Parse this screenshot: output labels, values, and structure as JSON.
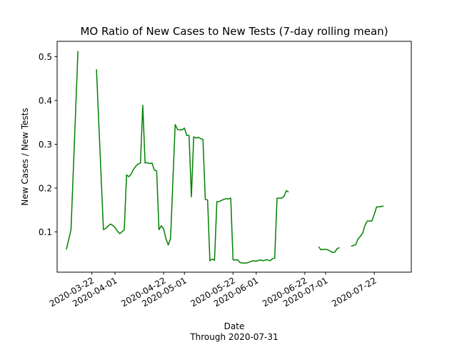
{
  "chart_data": {
    "type": "line",
    "title": "MO Ratio of New Cases to New Tests (7-day rolling mean)",
    "xlabel": "Date",
    "xlabel_sub": "Through 2020-07-31",
    "ylabel": "New Cases / New Tests",
    "xlim": [
      "2020-03-07",
      "2020-08-07"
    ],
    "ylim": [
      0.008,
      0.535
    ],
    "yticks": [
      0.1,
      0.2,
      0.3,
      0.4,
      0.5
    ],
    "ytick_labels": [
      "0.1",
      "0.2",
      "0.3",
      "0.4",
      "0.5"
    ],
    "xticks": [
      "2020-03-22",
      "2020-04-01",
      "2020-04-22",
      "2020-05-01",
      "2020-05-22",
      "2020-06-01",
      "2020-06-22",
      "2020-07-01",
      "2020-07-22"
    ],
    "grid": false,
    "line_color": "#008000",
    "series": [
      {
        "segments": [
          [
            [
              "2020-03-11",
              0.06
            ],
            [
              "2020-03-13",
              0.105
            ],
            [
              "2020-03-16",
              0.513
            ]
          ],
          [
            [
              "2020-03-24",
              0.471
            ],
            [
              "2020-03-27",
              0.105
            ],
            [
              "2020-03-28",
              0.108
            ],
            [
              "2020-03-29",
              0.113
            ],
            [
              "2020-03-30",
              0.118
            ],
            [
              "2020-03-31",
              0.115
            ],
            [
              "2020-04-01",
              0.11
            ],
            [
              "2020-04-02",
              0.102
            ],
            [
              "2020-04-03",
              0.096
            ],
            [
              "2020-04-04",
              0.1
            ],
            [
              "2020-04-05",
              0.105
            ],
            [
              "2020-04-06",
              0.23
            ],
            [
              "2020-04-07",
              0.226
            ],
            [
              "2020-04-08",
              0.232
            ],
            [
              "2020-04-09",
              0.243
            ],
            [
              "2020-04-10",
              0.25
            ],
            [
              "2020-04-11",
              0.255
            ],
            [
              "2020-04-12",
              0.257
            ],
            [
              "2020-04-13",
              0.389
            ],
            [
              "2020-04-14",
              0.257
            ],
            [
              "2020-04-15",
              0.258
            ],
            [
              "2020-04-16",
              0.256
            ],
            [
              "2020-04-17",
              0.257
            ],
            [
              "2020-04-18",
              0.241
            ],
            [
              "2020-04-19",
              0.239
            ],
            [
              "2020-04-20",
              0.105
            ],
            [
              "2020-04-21",
              0.114
            ],
            [
              "2020-04-22",
              0.107
            ],
            [
              "2020-04-23",
              0.085
            ],
            [
              "2020-04-24",
              0.07
            ],
            [
              "2020-04-25",
              0.085
            ],
            [
              "2020-04-27",
              0.345
            ],
            [
              "2020-04-28",
              0.334
            ],
            [
              "2020-04-29",
              0.333
            ],
            [
              "2020-04-30",
              0.333
            ],
            [
              "2020-05-01",
              0.337
            ],
            [
              "2020-05-02",
              0.32
            ],
            [
              "2020-05-03",
              0.32
            ],
            [
              "2020-05-04",
              0.18
            ],
            [
              "2020-05-05",
              0.317
            ],
            [
              "2020-05-06",
              0.314
            ],
            [
              "2020-05-07",
              0.316
            ],
            [
              "2020-05-08",
              0.313
            ],
            [
              "2020-05-09",
              0.311
            ],
            [
              "2020-05-10",
              0.174
            ],
            [
              "2020-05-11",
              0.173
            ],
            [
              "2020-05-12",
              0.034
            ],
            [
              "2020-05-13",
              0.038
            ],
            [
              "2020-05-14",
              0.035
            ],
            [
              "2020-05-15",
              0.169
            ],
            [
              "2020-05-16",
              0.169
            ],
            [
              "2020-05-17",
              0.172
            ],
            [
              "2020-05-18",
              0.174
            ],
            [
              "2020-05-19",
              0.176
            ],
            [
              "2020-05-20",
              0.175
            ],
            [
              "2020-05-21",
              0.177
            ],
            [
              "2020-05-22",
              0.036
            ],
            [
              "2020-05-23",
              0.036
            ],
            [
              "2020-05-24",
              0.036
            ],
            [
              "2020-05-25",
              0.03
            ],
            [
              "2020-05-26",
              0.029
            ],
            [
              "2020-05-27",
              0.029
            ],
            [
              "2020-05-28",
              0.029
            ],
            [
              "2020-05-29",
              0.031
            ],
            [
              "2020-05-30",
              0.033
            ],
            [
              "2020-05-31",
              0.034
            ],
            [
              "2020-06-01",
              0.033
            ],
            [
              "2020-06-02",
              0.035
            ],
            [
              "2020-06-03",
              0.036
            ],
            [
              "2020-06-04",
              0.034
            ],
            [
              "2020-06-05",
              0.036
            ],
            [
              "2020-06-06",
              0.036
            ],
            [
              "2020-06-07",
              0.034
            ],
            [
              "2020-06-08",
              0.039
            ],
            [
              "2020-06-09",
              0.04
            ],
            [
              "2020-06-10",
              0.177
            ],
            [
              "2020-06-11",
              0.177
            ],
            [
              "2020-06-12",
              0.177
            ],
            [
              "2020-06-13",
              0.181
            ],
            [
              "2020-06-14",
              0.194
            ],
            [
              "2020-06-15",
              0.191
            ]
          ],
          [
            [
              "2020-06-28",
              0.066
            ],
            [
              "2020-06-29",
              0.059
            ],
            [
              "2020-06-30",
              0.06
            ],
            [
              "2020-07-01",
              0.06
            ],
            [
              "2020-07-02",
              0.059
            ],
            [
              "2020-07-03",
              0.056
            ],
            [
              "2020-07-04",
              0.053
            ],
            [
              "2020-07-05",
              0.054
            ],
            [
              "2020-07-06",
              0.062
            ],
            [
              "2020-07-07",
              0.064
            ]
          ],
          [
            [
              "2020-07-12",
              0.067
            ],
            [
              "2020-07-14",
              0.071
            ],
            [
              "2020-07-15",
              0.084
            ],
            [
              "2020-07-16",
              0.09
            ],
            [
              "2020-07-17",
              0.097
            ],
            [
              "2020-07-18",
              0.115
            ],
            [
              "2020-07-19",
              0.125
            ],
            [
              "2020-07-20",
              0.125
            ],
            [
              "2020-07-21",
              0.125
            ],
            [
              "2020-07-22",
              0.14
            ],
            [
              "2020-07-23",
              0.157
            ],
            [
              "2020-07-24",
              0.157
            ],
            [
              "2020-07-25",
              0.158
            ],
            [
              "2020-07-26",
              0.159
            ]
          ]
        ]
      }
    ]
  }
}
